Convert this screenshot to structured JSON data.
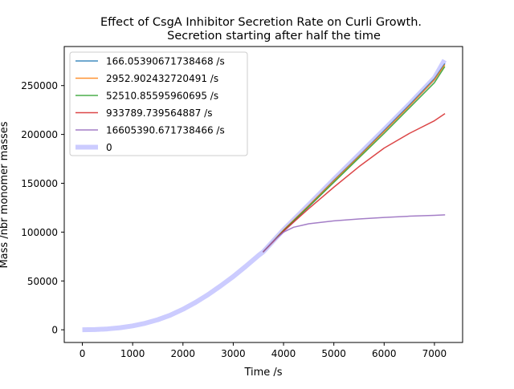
{
  "chart_data": {
    "type": "line",
    "title": "Effect of CsgA Inhibitor Secretion Rate on Curli Growth.\nSecretion starting after half the time",
    "xlabel": "Time /s",
    "ylabel": "Mass /nbr monomer masses",
    "xlim": [
      -360,
      7560
    ],
    "ylim": [
      -13000,
      290000
    ],
    "xticks": [
      0,
      1000,
      2000,
      3000,
      4000,
      5000,
      6000,
      7000
    ],
    "yticks": [
      0,
      50000,
      100000,
      150000,
      200000,
      250000
    ],
    "xtick_labels": [
      "0",
      "1000",
      "2000",
      "3000",
      "4000",
      "5000",
      "6000",
      "7000"
    ],
    "ytick_labels": [
      "0",
      "50000",
      "100000",
      "150000",
      "200000",
      "250000"
    ],
    "grid": false,
    "legend_position": "upper-left",
    "series": [
      {
        "name": "166.05390671738468 /s",
        "color": "#1f77b4",
        "x": [
          3600,
          4000,
          4500,
          5000,
          5500,
          6000,
          6500,
          7000,
          7200
        ],
        "y": [
          80000,
          102000,
          127000,
          153000,
          178000,
          204000,
          230000,
          257000,
          272000
        ]
      },
      {
        "name": "2952.902432720491 /s",
        "color": "#ff7f0e",
        "x": [
          3600,
          4000,
          4500,
          5000,
          5500,
          6000,
          6500,
          7000,
          7200
        ],
        "y": [
          80000,
          102000,
          127000,
          152500,
          177500,
          203000,
          229000,
          256000,
          271000
        ]
      },
      {
        "name": "52510.85595960695 /s",
        "color": "#2ca02c",
        "x": [
          3600,
          4000,
          4500,
          5000,
          5500,
          6000,
          6500,
          7000,
          7200
        ],
        "y": [
          80000,
          101500,
          126000,
          151000,
          176000,
          201000,
          227000,
          253000,
          269000
        ]
      },
      {
        "name": "933789.739564887 /s",
        "color": "#d62728",
        "x": [
          3600,
          4000,
          4500,
          5000,
          5500,
          6000,
          6500,
          7000,
          7200
        ],
        "y": [
          80000,
          101000,
          124000,
          146000,
          167000,
          186000,
          201000,
          214000,
          221000
        ]
      },
      {
        "name": "16605390.671738466 /s",
        "color": "#9467bd",
        "x": [
          3600,
          3800,
          4000,
          4200,
          4500,
          5000,
          5500,
          6000,
          6500,
          7000,
          7200
        ],
        "y": [
          80000,
          91000,
          100000,
          105000,
          108500,
          111500,
          113500,
          115000,
          116300,
          117200,
          117600
        ]
      },
      {
        "name": "0",
        "color": "#ccccff",
        "x": [
          0,
          250,
          500,
          750,
          1000,
          1250,
          1500,
          1750,
          2000,
          2250,
          2500,
          2750,
          3000,
          3250,
          3500,
          3600,
          4000,
          4500,
          5000,
          5500,
          6000,
          6500,
          7000,
          7200
        ],
        "y": [
          0,
          200,
          900,
          2100,
          4000,
          6700,
          10300,
          15000,
          21000,
          28000,
          36000,
          45000,
          54500,
          65000,
          76000,
          80000,
          102500,
          128000,
          154000,
          179500,
          205000,
          231000,
          258000,
          276000
        ]
      }
    ]
  }
}
